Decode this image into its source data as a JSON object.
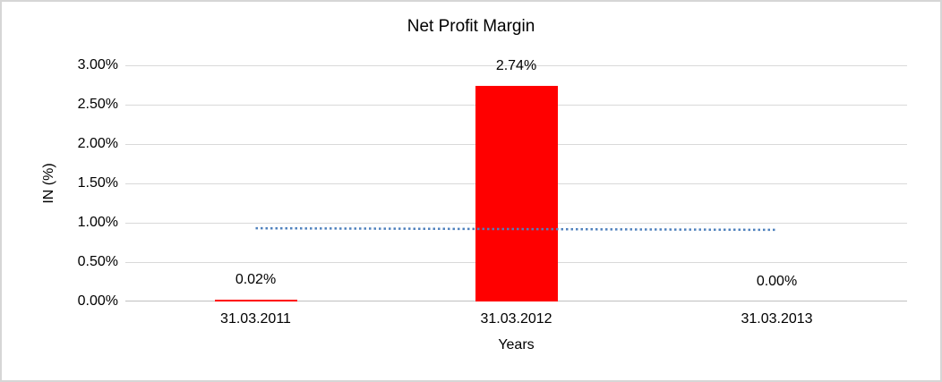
{
  "chart_data": {
    "type": "bar",
    "title": "Net Profit Margin",
    "xlabel": "Years",
    "ylabel": "IN (%)",
    "categories": [
      "31.03.2011",
      "31.03.2012",
      "31.03.2013"
    ],
    "values": [
      0.02,
      2.74,
      0.0
    ],
    "data_labels": [
      "0.02%",
      "2.74%",
      "0.00%"
    ],
    "ylim": [
      0,
      3
    ],
    "ytick_step": 0.5,
    "ytick_labels": [
      "0.00%",
      "0.50%",
      "1.00%",
      "1.50%",
      "2.00%",
      "2.50%",
      "3.00%"
    ],
    "grid": true,
    "legend": "none",
    "bar_color": "#FF0000",
    "gridline_color": "#D9D9D9",
    "axis_line_color": "#BFBFBF",
    "trendline": {
      "type": "linear",
      "style": "dotted",
      "color": "#4F81BD",
      "start_value": 0.93,
      "end_value": 0.91
    }
  }
}
